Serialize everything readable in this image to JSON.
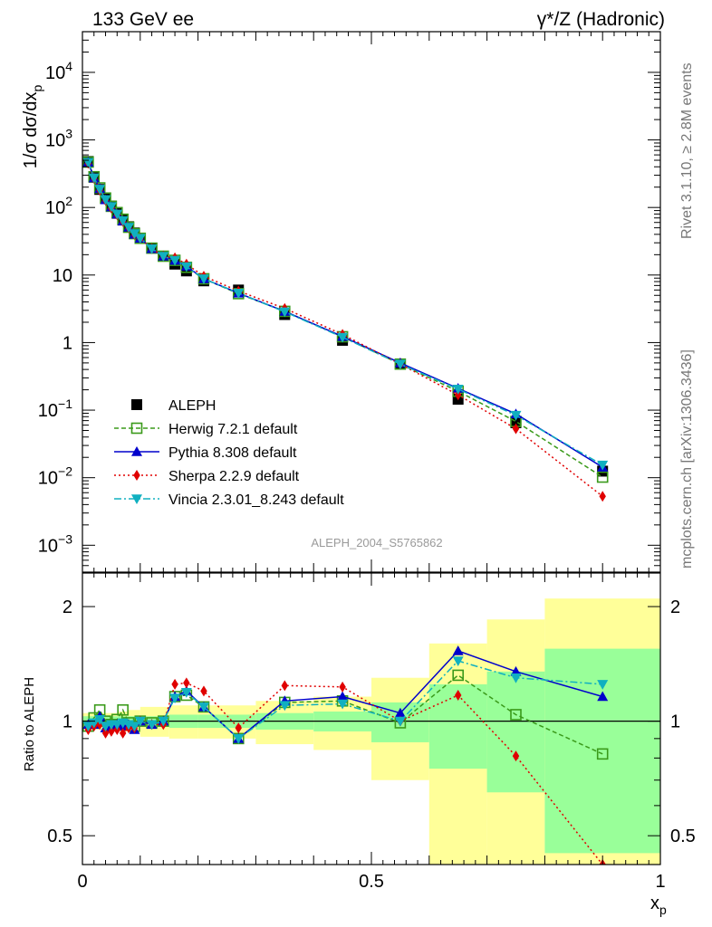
{
  "header": {
    "left_title": "133 GeV ee",
    "right_title": "γ*/Z (Hadronic)"
  },
  "side_text": {
    "rivet": "Rivet 3.1.10, ≥ 2.8M events",
    "mcplots": "mcplots.cern.ch [arXiv:1306.3436]"
  },
  "analysis_label": "ALEPH_2004_S5765862",
  "chart_data": [
    {
      "type": "scatter",
      "panel": "main",
      "ylabel": "1/σ dσ/dx_p",
      "yscale": "log",
      "ylim": [
        0.0004,
        40000
      ],
      "xlim": [
        0,
        1
      ],
      "ytick_labels": [
        "10^-3",
        "10^-2",
        "10^-1",
        "1",
        "10",
        "10^2",
        "10^3",
        "10^4"
      ],
      "legend_position": "lower-left",
      "x": [
        0.01,
        0.02,
        0.03,
        0.04,
        0.05,
        0.06,
        0.07,
        0.08,
        0.09,
        0.1,
        0.12,
        0.14,
        0.16,
        0.18,
        0.21,
        0.27,
        0.35,
        0.45,
        0.55,
        0.65,
        0.75,
        0.9
      ],
      "series": [
        {
          "name": "ALEPH",
          "color": "#000000",
          "marker": "square",
          "values": [
            480,
            280,
            185,
            135,
            105,
            82,
            65,
            52,
            42,
            35,
            25,
            19,
            14.5,
            11.5,
            8.2,
            6.0,
            2.6,
            1.08,
            0.48,
            0.145,
            0.065,
            0.0125
          ]
        },
        {
          "name": "Herwig 7.2.1 default",
          "color": "#3a9a1a",
          "marker": "open-square",
          "dash": "5,3",
          "values": [
            470,
            285,
            195,
            138,
            104,
            84,
            67,
            51,
            41,
            35,
            25,
            19,
            16.5,
            13,
            8.8,
            5.3,
            2.9,
            1.22,
            0.48,
            0.19,
            0.068,
            0.0102
          ]
        },
        {
          "name": "Pythia 8.308 default",
          "color": "#0000cc",
          "marker": "triangle-up",
          "values": [
            470,
            275,
            190,
            130,
            102,
            80,
            63,
            51,
            40,
            35,
            24.5,
            19,
            16.5,
            13.5,
            8.8,
            5.4,
            2.9,
            1.23,
            0.5,
            0.21,
            0.088,
            0.0143
          ]
        },
        {
          "name": "Sherpa 2.2.9 default",
          "color": "#e00000",
          "marker": "diamond",
          "dash": "2,3",
          "values": [
            450,
            270,
            180,
            127,
            98,
            78,
            62,
            50,
            40,
            35,
            24.5,
            19,
            18,
            14.5,
            9.6,
            5.8,
            3.2,
            1.32,
            0.48,
            0.168,
            0.053,
            0.0053
          ]
        },
        {
          "name": "Vincia 2.3.01_8.243 default",
          "color": "#10b0c0",
          "marker": "triangle-down",
          "dash": "8,3,2,3",
          "values": [
            465,
            275,
            187,
            131,
            103,
            80,
            64,
            51,
            41,
            35,
            24.5,
            19,
            16.5,
            13.3,
            8.8,
            5.4,
            2.85,
            1.2,
            0.48,
            0.205,
            0.084,
            0.0154
          ]
        }
      ]
    },
    {
      "type": "scatter",
      "panel": "ratio",
      "ylabel": "Ratio to ALEPH",
      "xlabel": "x_p",
      "yscale": "log",
      "ylim": [
        0.42,
        2.45
      ],
      "xlim": [
        0,
        1
      ],
      "ytick_labels": [
        "0.5",
        "1",
        "2"
      ],
      "xtick_labels": [
        "0",
        "0.5",
        "1"
      ],
      "x": [
        0.01,
        0.02,
        0.03,
        0.04,
        0.05,
        0.06,
        0.07,
        0.08,
        0.09,
        0.1,
        0.12,
        0.14,
        0.16,
        0.18,
        0.21,
        0.27,
        0.35,
        0.45,
        0.55,
        0.65,
        0.75,
        0.9
      ],
      "uncertainty_bands": {
        "bin_edges": [
          0.0,
          0.02,
          0.04,
          0.06,
          0.08,
          0.1,
          0.15,
          0.2,
          0.3,
          0.4,
          0.5,
          0.6,
          0.7,
          0.8,
          1.0
        ],
        "green_half_width": [
          0.03,
          0.03,
          0.03,
          0.03,
          0.03,
          0.03,
          0.04,
          0.04,
          0.05,
          0.06,
          0.12,
          0.25,
          0.35,
          0.55
        ],
        "yellow_half_width": [
          0.05,
          0.05,
          0.05,
          0.06,
          0.07,
          0.09,
          0.1,
          0.1,
          0.13,
          0.16,
          0.3,
          0.6,
          0.85,
          1.1
        ]
      },
      "series": [
        {
          "name": "Herwig 7.2.1 default",
          "color": "#3a9a1a",
          "marker": "open-square",
          "dash": "5,3",
          "values": [
            0.97,
            1.02,
            1.07,
            1.0,
            0.98,
            1.01,
            1.07,
            0.99,
            0.97,
            1.0,
            0.99,
            1.0,
            1.16,
            1.17,
            1.09,
            0.9,
            1.12,
            1.13,
            0.99,
            1.32,
            1.04,
            0.82
          ]
        },
        {
          "name": "Pythia 8.308 default",
          "color": "#0000cc",
          "marker": "triangle-up",
          "values": [
            0.98,
            0.98,
            1.03,
            0.96,
            0.97,
            0.98,
            0.97,
            0.98,
            0.95,
            1.0,
            0.98,
            1.0,
            1.16,
            1.2,
            1.09,
            0.9,
            1.13,
            1.16,
            1.05,
            1.53,
            1.35,
            1.16
          ]
        },
        {
          "name": "Sherpa 2.2.9 default",
          "color": "#e00000",
          "marker": "diamond",
          "dash": "2,3",
          "values": [
            0.95,
            0.97,
            0.98,
            0.93,
            0.94,
            0.95,
            0.93,
            0.96,
            0.96,
            1.0,
            0.98,
            0.98,
            1.25,
            1.26,
            1.2,
            0.96,
            1.24,
            1.23,
            1.0,
            1.17,
            0.81,
            0.42
          ]
        },
        {
          "name": "Vincia 2.3.01_8.243 default",
          "color": "#10b0c0",
          "marker": "triangle-down",
          "dash": "8,3,2,3",
          "values": [
            0.97,
            0.99,
            1.01,
            0.97,
            0.98,
            0.98,
            0.99,
            0.98,
            0.97,
            1.0,
            0.98,
            1.0,
            1.15,
            1.19,
            1.09,
            0.9,
            1.1,
            1.11,
            1.0,
            1.44,
            1.3,
            1.25
          ]
        }
      ]
    }
  ]
}
